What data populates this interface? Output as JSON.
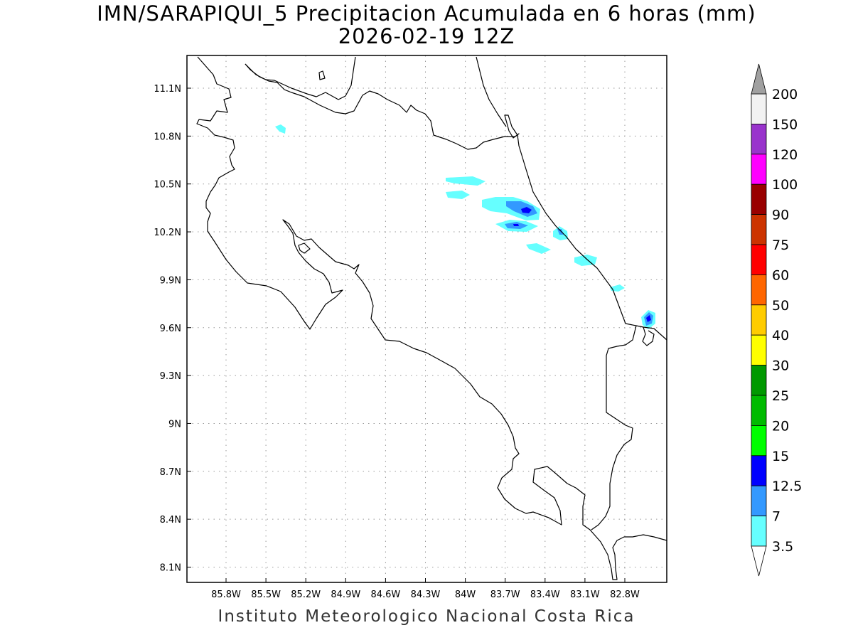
{
  "title_line1": "IMN/SARAPIQUI_5 Precipitacion Acumulada en 6 horas (mm)",
  "title_line2": "2026-02-19 12Z",
  "footer": "Instituto Meteorologico Nacional Costa Rica",
  "map": {
    "lon_ticks": [
      "85.8W",
      "85.5W",
      "85.2W",
      "84.9W",
      "84.6W",
      "84.3W",
      "84W",
      "83.7W",
      "83.4W",
      "83.1W",
      "82.8W"
    ],
    "lat_ticks": [
      "11.1N",
      "10.8N",
      "10.5N",
      "10.2N",
      "9.9N",
      "9.6N",
      "9.3N",
      "9N",
      "8.7N",
      "8.4N",
      "8.1N"
    ]
  },
  "colorbar": {
    "labels": [
      "200",
      "150",
      "120",
      "100",
      "90",
      "75",
      "60",
      "50",
      "40",
      "30",
      "25",
      "20",
      "15",
      "12.5",
      "7",
      "3.5"
    ],
    "colors": [
      "#f2f2f2",
      "#9933cc",
      "#ff00ff",
      "#990000",
      "#cc3300",
      "#ff0000",
      "#ff6600",
      "#ffcc00",
      "#ffff00",
      "#009900",
      "#00bb00",
      "#00ff00",
      "#0000ff",
      "#3399ff",
      "#66ffff"
    ],
    "over_color": "#a0a0a0",
    "under_color": "#ffffff"
  }
}
